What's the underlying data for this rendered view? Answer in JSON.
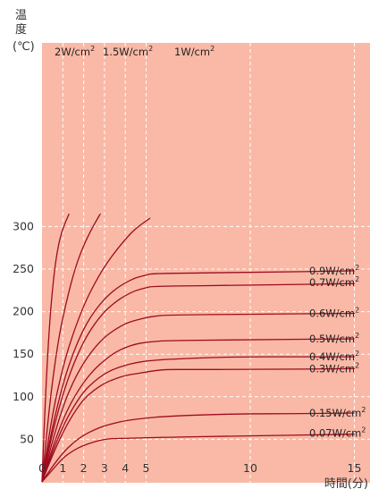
{
  "chart_data": {
    "type": "line",
    "ylabel": "温度",
    "ylabel_unit": "(℃)",
    "xlabel": "時間(分)",
    "xlim": [
      0,
      16
    ],
    "ylim": [
      0,
      330
    ],
    "x_ticks": [
      0,
      1,
      2,
      3,
      4,
      5,
      10,
      15
    ],
    "y_ticks": [
      50,
      100,
      150,
      200,
      250,
      300
    ],
    "grid": true,
    "colors": {
      "plot_background": "#f9b9a6",
      "line": "#9e0b1f",
      "leader": "#9e0b1f",
      "grid": "#ffffff"
    },
    "series": [
      {
        "name": "2W/cm",
        "x": [
          0,
          0.2,
          0.4,
          0.6,
          0.8,
          1.0,
          1.3
        ],
        "y": [
          0,
          120,
          200,
          250,
          280,
          298,
          315
        ]
      },
      {
        "name": "1.5W/cm",
        "x": [
          0,
          0.4,
          0.8,
          1.2,
          1.6,
          2.0,
          2.4,
          2.8
        ],
        "y": [
          0,
          100,
          170,
          215,
          252,
          278,
          298,
          315
        ]
      },
      {
        "name": "1W/cm",
        "x": [
          0,
          0.5,
          1,
          1.5,
          2,
          2.5,
          3,
          3.5,
          4,
          4.5,
          5.2
        ],
        "y": [
          0,
          80,
          135,
          175,
          207,
          232,
          253,
          270,
          285,
          298,
          310
        ]
      },
      {
        "name": "0.9W/cm",
        "x": [
          0,
          0.5,
          1,
          1.5,
          2,
          2.5,
          3,
          3.5,
          4,
          4.5,
          5.0,
          5.3,
          10,
          15,
          16
        ],
        "y": [
          0,
          65,
          115,
          152,
          180,
          200,
          215,
          226,
          234,
          240,
          243,
          245,
          246,
          248,
          248
        ]
      },
      {
        "name": "0.7W/cm",
        "x": [
          0,
          0.5,
          1,
          1.5,
          2,
          2.5,
          3,
          3.5,
          4,
          4.5,
          5.0,
          5.3,
          10,
          15,
          16
        ],
        "y": [
          0,
          58,
          103,
          138,
          165,
          185,
          200,
          211,
          219,
          225,
          228,
          230,
          231,
          233,
          234
        ]
      },
      {
        "name": "0.6W/cm",
        "x": [
          0,
          0.5,
          1,
          1.5,
          2,
          2.5,
          3,
          3.5,
          4,
          4.5,
          5.0,
          5.5,
          6,
          10,
          15,
          16
        ],
        "y": [
          0,
          48,
          88,
          118,
          140,
          157,
          170,
          179,
          186,
          190,
          193,
          195,
          196,
          197,
          198,
          198
        ]
      },
      {
        "name": "0.5W/cm",
        "x": [
          0,
          0.5,
          1,
          1.5,
          2,
          2.5,
          3,
          3.5,
          4,
          4.5,
          5.0,
          5.5,
          6,
          10,
          15,
          16
        ],
        "y": [
          0,
          40,
          73,
          98,
          117,
          132,
          143,
          152,
          158,
          162,
          164,
          165,
          166,
          167,
          168,
          168
        ]
      },
      {
        "name": "0.4W/cm",
        "x": [
          0,
          0.5,
          1,
          1.5,
          2,
          2.5,
          3,
          3.5,
          4,
          4.5,
          5.0,
          6,
          8,
          10,
          12,
          15,
          16
        ],
        "y": [
          0,
          35,
          65,
          88,
          106,
          118,
          127,
          133,
          137,
          140,
          142,
          144,
          146,
          147,
          147,
          147,
          147
        ]
      },
      {
        "name": "0.3W/cm",
        "x": [
          0,
          0.5,
          1,
          1.5,
          2,
          2.5,
          3,
          3.5,
          4,
          4.5,
          5.0,
          5.5,
          6,
          7,
          10,
          15,
          16
        ],
        "y": [
          0,
          31,
          58,
          80,
          97,
          108,
          116,
          121,
          125,
          127,
          129,
          131,
          132,
          132,
          132,
          133,
          133
        ]
      },
      {
        "name": "0.15W/cm",
        "x": [
          0,
          0.5,
          1,
          1.5,
          2,
          2.5,
          3,
          3.5,
          4,
          5,
          6,
          8,
          10,
          12,
          15,
          16
        ],
        "y": [
          0,
          18,
          34,
          46,
          55,
          61,
          66,
          69,
          72,
          75,
          77,
          79,
          80,
          80,
          81,
          81
        ]
      },
      {
        "name": "0.07W/cm",
        "x": [
          0,
          0.5,
          1,
          1.5,
          2,
          2.5,
          3,
          3.5,
          4,
          5,
          10,
          15,
          16
        ],
        "y": [
          0,
          14,
          28,
          37,
          43,
          47,
          50,
          51,
          51,
          52,
          54,
          56,
          57
        ]
      }
    ],
    "labels": [
      {
        "series": "2W/cm",
        "text": "2W/cm",
        "sup": "2",
        "placement": "top"
      },
      {
        "series": "1.5W/cm",
        "text": "1.5W/cm",
        "sup": "2",
        "placement": "top"
      },
      {
        "series": "1W/cm",
        "text": "1W/cm",
        "sup": "2",
        "placement": "top"
      },
      {
        "series": "0.9W/cm",
        "text": "0.9W/cm",
        "sup": "2",
        "placement": "right"
      },
      {
        "series": "0.7W/cm",
        "text": "0.7W/cm",
        "sup": "2",
        "placement": "right"
      },
      {
        "series": "0.6W/cm",
        "text": "0.6W/cm",
        "sup": "2",
        "placement": "right"
      },
      {
        "series": "0.5W/cm",
        "text": "0.5W/cm",
        "sup": "2",
        "placement": "right"
      },
      {
        "series": "0.4W/cm",
        "text": "0.4W/cm",
        "sup": "2",
        "placement": "right"
      },
      {
        "series": "0.3W/cm",
        "text": "0.3W/cm",
        "sup": "2",
        "placement": "right"
      },
      {
        "series": "0.15W/cm",
        "text": "0.15W/cm",
        "sup": "2",
        "placement": "right"
      },
      {
        "series": "0.07W/cm",
        "text": "0.07W/cm",
        "sup": "2",
        "placement": "right"
      }
    ]
  }
}
